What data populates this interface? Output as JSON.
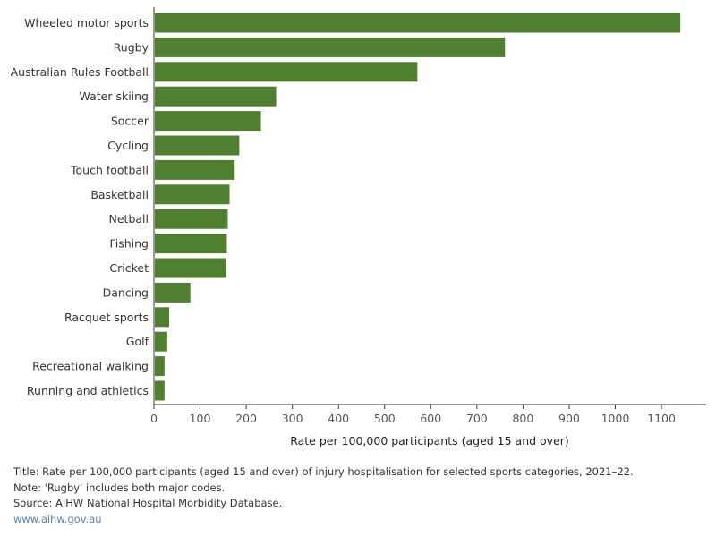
{
  "chart_data": {
    "type": "bar",
    "orientation": "horizontal",
    "categories": [
      "Wheeled motor sports",
      "Rugby",
      "Australian Rules Football",
      "Water skiing",
      "Soccer",
      "Cycling",
      "Touch football",
      "Basketball",
      "Netball",
      "Fishing",
      "Cricket",
      "Dancing",
      "Racquet sports",
      "Golf",
      "Recreational walking",
      "Running and athletics"
    ],
    "values": [
      1139,
      759,
      569,
      263,
      230,
      183,
      173,
      162,
      158,
      156,
      155,
      77,
      31,
      27,
      21,
      21
    ],
    "xlabel": "Rate per 100,000 participants (aged 15 and over)",
    "xlim": [
      0,
      1200
    ],
    "xticks": [
      0,
      100,
      200,
      300,
      400,
      500,
      600,
      700,
      800,
      900,
      1000,
      1100
    ],
    "grid": false,
    "bar_color": "#507f2f"
  },
  "notes": {
    "title": "Title: Rate per 100,000 participants (aged 15 and over) of injury hospitalisation for selected sports categories, 2021–22.",
    "note": "Note: 'Rugby' includes both major codes.",
    "source": "Source: AIHW National Hospital Morbidity Database.",
    "link": "www.aihw.gov.au"
  }
}
